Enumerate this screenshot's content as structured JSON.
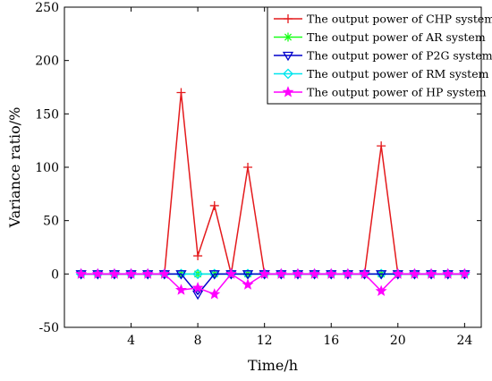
{
  "chart_data": {
    "type": "line",
    "title": "",
    "xlabel": "Time/h",
    "ylabel": "Variance ratio/%",
    "xlim": [
      0,
      25
    ],
    "ylim": [
      -50,
      250
    ],
    "x_ticks": [
      4,
      8,
      12,
      16,
      20,
      24
    ],
    "y_ticks": [
      -50,
      0,
      50,
      100,
      150,
      200,
      250
    ],
    "grid": false,
    "legend_position": "top-right",
    "x": [
      1,
      2,
      3,
      4,
      5,
      6,
      7,
      8,
      9,
      10,
      11,
      12,
      13,
      14,
      15,
      16,
      17,
      18,
      19,
      20,
      21,
      22,
      23,
      24
    ],
    "series": [
      {
        "name": "The output power of CHP system",
        "color": "#e41a1c",
        "marker": "plus",
        "values": [
          0,
          0,
          0,
          0,
          0,
          0,
          170,
          17,
          64,
          0,
          100,
          0,
          0,
          0,
          0,
          0,
          0,
          0,
          120,
          0,
          0,
          0,
          0,
          0
        ]
      },
      {
        "name": "The output power of AR system",
        "color": "#1aff1a",
        "marker": "asterisk",
        "values": [
          0,
          0,
          0,
          0,
          0,
          0,
          0,
          0,
          0,
          0,
          0,
          0,
          0,
          0,
          0,
          0,
          0,
          0,
          0,
          0,
          0,
          0,
          0,
          0
        ]
      },
      {
        "name": "The output power of P2G system",
        "color": "#0000cc",
        "marker": "triangle-down",
        "values": [
          0,
          0,
          0,
          0,
          0,
          0,
          0,
          -19,
          0,
          0,
          0,
          0,
          0,
          0,
          0,
          0,
          0,
          0,
          0,
          0,
          0,
          0,
          0,
          0
        ]
      },
      {
        "name": "The output power of RM system",
        "color": "#00e5ee",
        "marker": "diamond",
        "values": [
          0,
          0,
          0,
          0,
          0,
          0,
          0,
          0,
          0,
          0,
          0,
          0,
          0,
          0,
          0,
          0,
          0,
          0,
          0,
          0,
          0,
          0,
          0,
          0
        ]
      },
      {
        "name": "The output power of HP system",
        "color": "#ff00ff",
        "marker": "star",
        "values": [
          0,
          0,
          0,
          0,
          0,
          0,
          -15,
          -13,
          -19,
          0,
          -10,
          0,
          0,
          0,
          0,
          0,
          0,
          0,
          -16,
          0,
          0,
          0,
          0,
          0
        ]
      }
    ]
  }
}
